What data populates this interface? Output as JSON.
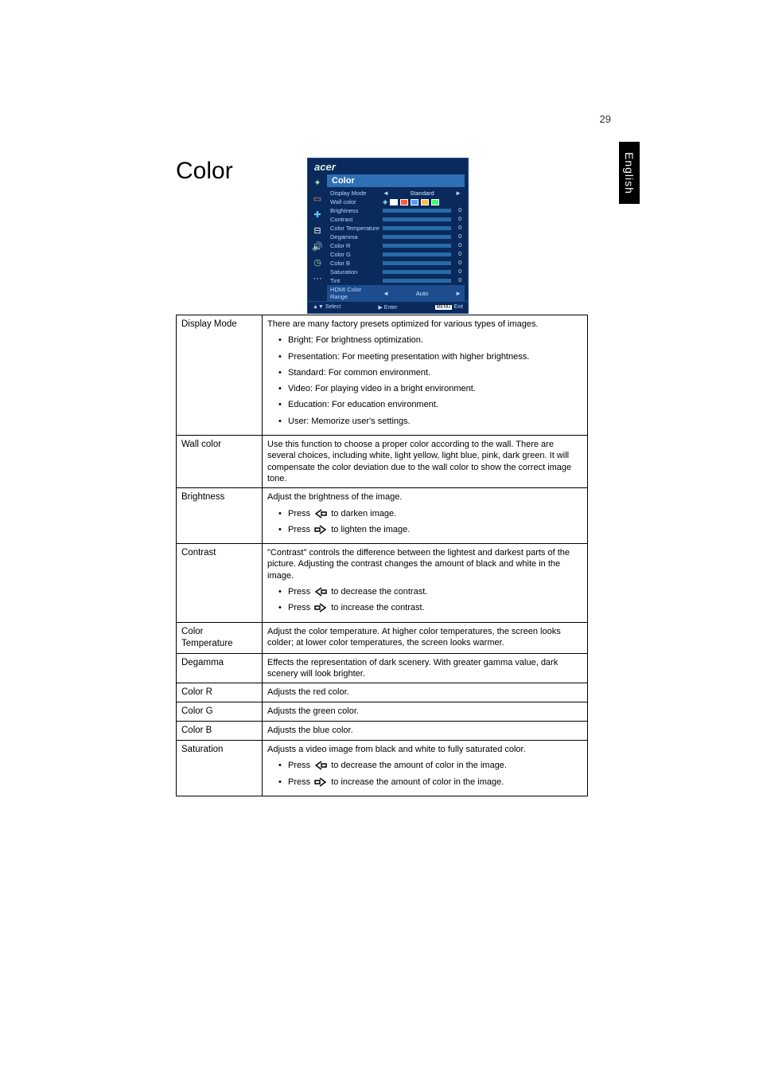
{
  "page_number": "29",
  "side_tab": "English",
  "title": "Color",
  "osd": {
    "logo": "acer",
    "section_title": "Color",
    "icon_colors": {
      "color": "#9be89b",
      "image": "#ff9a56",
      "adjust": "#62c5ff",
      "port": "#ffffff",
      "sound": "#ffffff",
      "timer": "#9be89b",
      "lang": "#9be89b"
    },
    "rows": [
      {
        "label": "Display Mode",
        "value": "Standard",
        "type": "arrow"
      },
      {
        "label": "Wall color",
        "type": "swatches"
      },
      {
        "label": "Brightness",
        "value": "0",
        "type": "slider"
      },
      {
        "label": "Contrast",
        "value": "0",
        "type": "slider"
      },
      {
        "label": "Color Temperature",
        "value": "0",
        "type": "slider"
      },
      {
        "label": "Degamma",
        "value": "0",
        "type": "slider"
      },
      {
        "label": "Color R",
        "value": "0",
        "type": "slider"
      },
      {
        "label": "Color G",
        "value": "0",
        "type": "slider"
      },
      {
        "label": "Color B",
        "value": "0",
        "type": "slider"
      },
      {
        "label": "Saturation",
        "value": "0",
        "type": "slider"
      },
      {
        "label": "Tint",
        "value": "0",
        "type": "slider"
      },
      {
        "label": "HDMI Color Range",
        "value": "Auto",
        "type": "arrow",
        "sel": true
      }
    ],
    "swatch_colors": [
      "#ffffff",
      "#ff5a3c",
      "#5a9bff",
      "#ffc04a",
      "#3cff6a"
    ],
    "footer": {
      "select": "Select",
      "enter": "Enter",
      "menu_key": "MENU",
      "exit": "Exit"
    },
    "select_arrows": "▲▼",
    "enter_arrow": "▶",
    "bg_color": "#0a2a5c",
    "highlight_color": "#2e6fb5"
  },
  "table": [
    {
      "label": "Display Mode",
      "intro": "There are many factory presets optimized for various types of images.",
      "items": [
        "Bright: For brightness optimization.",
        "Presentation: For meeting presentation with higher brightness.",
        "Standard: For common environment.",
        "Video: For playing video in a bright environment.",
        "Education: For education environment.",
        "User: Memorize user's settings."
      ]
    },
    {
      "label": "Wall color",
      "text": "Use this function to choose a proper color according to the wall. There are several choices, including white, light yellow, light blue, pink, dark green. It will compensate the color deviation due to the wall color to show the correct image tone."
    },
    {
      "label": "Brightness",
      "intro": "Adjust the brightness of the image.",
      "presses": [
        {
          "dir": "left",
          "text_before": "Press ",
          "text_after": " to darken image."
        },
        {
          "dir": "right",
          "text_before": "Press ",
          "text_after": " to lighten the image."
        }
      ]
    },
    {
      "label": "Contrast",
      "intro": "\"Contrast\" controls the difference between the lightest and darkest parts of the picture. Adjusting the contrast changes the amount of black and white in the image.",
      "presses": [
        {
          "dir": "left",
          "text_before": "Press ",
          "text_after": " to decrease the contrast."
        },
        {
          "dir": "right",
          "text_before": "Press ",
          "text_after": " to increase the contrast."
        }
      ]
    },
    {
      "label": "Color Temperature",
      "text": "Adjust the color temperature. At higher color temperatures, the screen looks colder; at lower color temperatures, the screen looks warmer."
    },
    {
      "label": "Degamma",
      "text": "Effects the representation of dark scenery. With greater gamma value, dark scenery will look brighter."
    },
    {
      "label": "Color R",
      "text": "Adjusts the red color."
    },
    {
      "label": "Color G",
      "text": "Adjusts the green color."
    },
    {
      "label": "Color B",
      "text": "Adjusts the blue color."
    },
    {
      "label": "Saturation",
      "intro": "Adjusts a video image from black and white to fully saturated color.",
      "presses": [
        {
          "dir": "left",
          "text_before": "Press ",
          "text_after": " to decrease the amount of color in the image."
        },
        {
          "dir": "right",
          "text_before": "Press ",
          "text_after": " to increase the amount of color in the image."
        }
      ]
    }
  ]
}
